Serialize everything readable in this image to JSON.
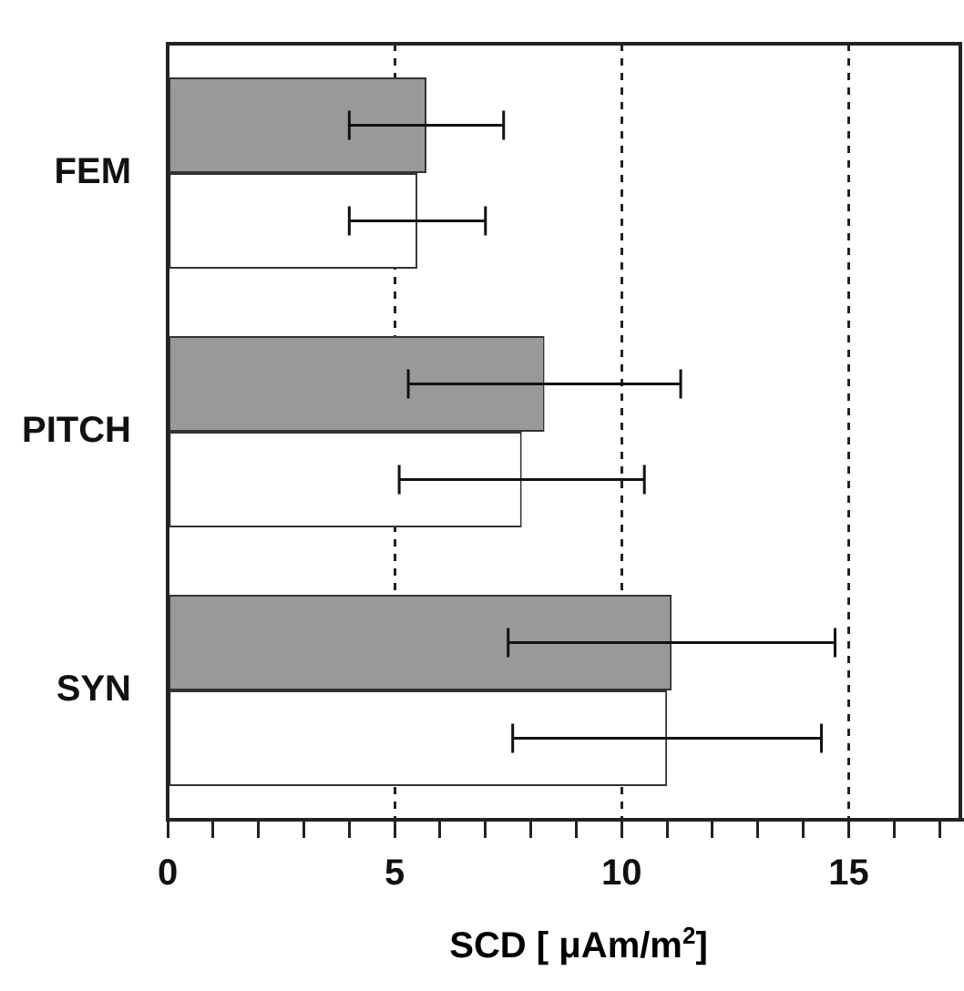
{
  "chart_data": {
    "type": "bar",
    "orientation": "horizontal",
    "xlabel": "SCD  [ μAm/m$^{2}$]",
    "categories": [
      "FEM",
      "PITCH",
      "SYN"
    ],
    "series": [
      {
        "color": "#999999",
        "values": [
          5.7,
          8.3,
          11.1
        ],
        "errors": [
          1.7,
          3.0,
          3.6
        ]
      },
      {
        "color": "#ffffff",
        "values": [
          5.5,
          7.8,
          11.0
        ],
        "errors": [
          1.5,
          2.7,
          3.4
        ]
      }
    ],
    "xlim": [
      0,
      17.5
    ],
    "xticks": [
      0,
      {
        "value": 1,
        "label": null
      },
      {
        "value": 2,
        "label": null
      },
      {
        "value": 3,
        "label": null
      },
      {
        "value": 4,
        "label": null
      },
      5,
      {
        "value": 6,
        "label": null
      },
      {
        "value": 7,
        "label": null
      },
      {
        "value": 8,
        "label": null
      },
      {
        "value": 9,
        "label": null
      },
      10,
      {
        "value": 11,
        "label": null
      },
      {
        "value": 12,
        "label": null
      },
      {
        "value": 13,
        "label": null
      },
      {
        "value": 14,
        "label": null
      },
      15,
      {
        "value": 16,
        "label": null
      },
      {
        "value": 17,
        "label": null
      }
    ],
    "grid": "x",
    "line_style": "dashed",
    "legend": false
  }
}
